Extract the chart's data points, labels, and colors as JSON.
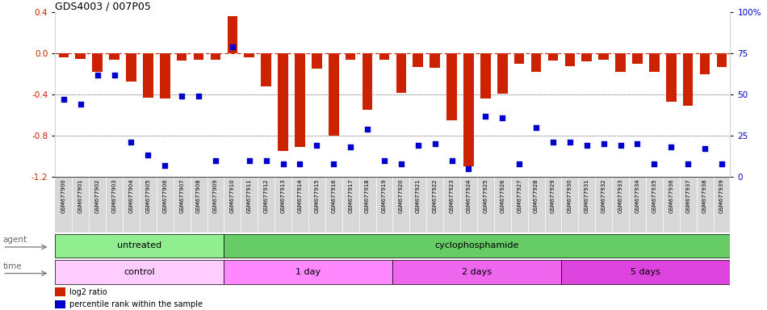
{
  "title": "GDS4003 / 007P05",
  "samples": [
    "GSM677900",
    "GSM677901",
    "GSM677902",
    "GSM677903",
    "GSM677904",
    "GSM677905",
    "GSM677906",
    "GSM677907",
    "GSM677908",
    "GSM677909",
    "GSM677910",
    "GSM677911",
    "GSM677912",
    "GSM677913",
    "GSM677914",
    "GSM677915",
    "GSM677916",
    "GSM677917",
    "GSM677918",
    "GSM677919",
    "GSM677920",
    "GSM677921",
    "GSM677922",
    "GSM677923",
    "GSM677924",
    "GSM677925",
    "GSM677926",
    "GSM677927",
    "GSM677928",
    "GSM677929",
    "GSM677930",
    "GSM677931",
    "GSM677932",
    "GSM677933",
    "GSM677934",
    "GSM677935",
    "GSM677936",
    "GSM677937",
    "GSM677938",
    "GSM677939"
  ],
  "log2_ratio": [
    -0.04,
    -0.05,
    -0.18,
    -0.06,
    -0.27,
    -0.43,
    -0.44,
    -0.07,
    -0.06,
    -0.06,
    0.36,
    -0.04,
    -0.32,
    -0.95,
    -0.91,
    -0.15,
    -0.8,
    -0.06,
    -0.55,
    -0.06,
    -0.38,
    -0.13,
    -0.14,
    -0.65,
    -1.1,
    -0.44,
    -0.39,
    -0.1,
    -0.18,
    -0.07,
    -0.12,
    -0.08,
    -0.06,
    -0.18,
    -0.1,
    -0.18,
    -0.47,
    -0.51,
    -0.2,
    -0.13
  ],
  "percentile": [
    47,
    44,
    62,
    62,
    21,
    13,
    7,
    49,
    49,
    10,
    79,
    10,
    10,
    8,
    8,
    19,
    8,
    18,
    29,
    10,
    8,
    19,
    20,
    10,
    5,
    37,
    36,
    8,
    30,
    21,
    21,
    19,
    20,
    19,
    20,
    8,
    18,
    8,
    17,
    8
  ],
  "bar_color": "#cc2200",
  "dot_color": "#0000cc",
  "zero_line_color": "#cc2200",
  "ylim_left": [
    -1.2,
    0.4
  ],
  "ylim_right": [
    0,
    100
  ],
  "yticks_left": [
    0.4,
    0.0,
    -0.4,
    -0.8,
    -1.2
  ],
  "yticks_right": [
    100,
    75,
    50,
    25,
    0
  ],
  "ytick_labels_right": [
    "100%",
    "75",
    "50",
    "25",
    "0"
  ],
  "agent_groups": [
    {
      "label": "untreated",
      "start": 0,
      "end": 10,
      "color": "#90ee90"
    },
    {
      "label": "cyclophosphamide",
      "start": 10,
      "end": 40,
      "color": "#66cc66"
    }
  ],
  "time_groups": [
    {
      "label": "control",
      "start": 0,
      "end": 10,
      "color": "#ffaaff"
    },
    {
      "label": "1 day",
      "start": 10,
      "end": 20,
      "color": "#ff88ff"
    },
    {
      "label": "2 days",
      "start": 20,
      "end": 30,
      "color": "#ee66ee"
    },
    {
      "label": "5 days",
      "start": 30,
      "end": 40,
      "color": "#dd55dd"
    }
  ],
  "legend_red": "log2 ratio",
  "legend_blue": "percentile rank within the sample",
  "fig_width": 9.5,
  "fig_height": 3.84,
  "dpi": 100
}
